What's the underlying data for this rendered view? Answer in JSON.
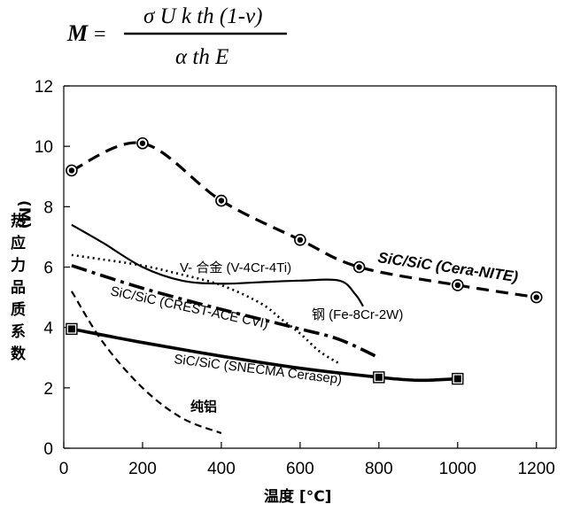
{
  "formula": {
    "lhs": "M",
    "equals": "=",
    "numerator": "σ U k th (1-ν)",
    "denominator": "α th E"
  },
  "chart_data": {
    "type": "line",
    "title": "",
    "xlabel": "温度 [°C]",
    "ylabel": "热应力品质系数 (M)",
    "xlim": [
      0,
      1250
    ],
    "ylim": [
      0,
      12
    ],
    "xticks": [
      0,
      200,
      400,
      600,
      800,
      1000,
      1200
    ],
    "yticks": [
      0,
      2,
      4,
      6,
      8,
      10,
      12
    ],
    "grid": false,
    "legend": "none",
    "series": [
      {
        "name": "SiC/SiC (Cera-NITE)",
        "style": "dashed-thick",
        "marker": "circle",
        "x": [
          20,
          200,
          400,
          600,
          750,
          1000,
          1200
        ],
        "y": [
          9.2,
          10.1,
          8.2,
          6.9,
          6.0,
          5.4,
          5.0
        ]
      },
      {
        "name": "V- 合金 (V-4Cr-4Ti)",
        "style": "solid",
        "marker": "none",
        "x": [
          20,
          100,
          200,
          300,
          400,
          500,
          600,
          700,
          740,
          760
        ],
        "y": [
          7.4,
          6.8,
          6.0,
          5.55,
          5.45,
          5.5,
          5.55,
          5.55,
          5.1,
          4.7
        ]
      },
      {
        "name": "钢 (Fe-8Cr-2W)",
        "style": "dotted",
        "marker": "none",
        "x": [
          20,
          100,
          200,
          300,
          400,
          500,
          550,
          600,
          650,
          700
        ],
        "y": [
          6.4,
          6.25,
          6.05,
          5.75,
          5.4,
          4.8,
          4.3,
          3.8,
          3.2,
          2.8
        ]
      },
      {
        "name": "SiC/SiC (CREST-ACE CVI)",
        "style": "dash-dot-thick",
        "marker": "none",
        "x": [
          20,
          200,
          400,
          600,
          700,
          800
        ],
        "y": [
          6.05,
          5.3,
          4.6,
          3.95,
          3.6,
          3.0
        ]
      },
      {
        "name": "SiC/SiC (SNECMA Cerasep)",
        "style": "solid-thick",
        "marker": "square",
        "x": [
          20,
          200,
          400,
          600,
          800,
          900,
          1000
        ],
        "y": [
          3.95,
          3.5,
          3.05,
          2.65,
          2.35,
          2.25,
          2.3
        ]
      },
      {
        "name": "纯铝",
        "style": "dashed",
        "marker": "none",
        "x": [
          20,
          100,
          200,
          300,
          400
        ],
        "y": [
          5.2,
          3.5,
          2.0,
          1.0,
          0.5
        ]
      }
    ]
  }
}
